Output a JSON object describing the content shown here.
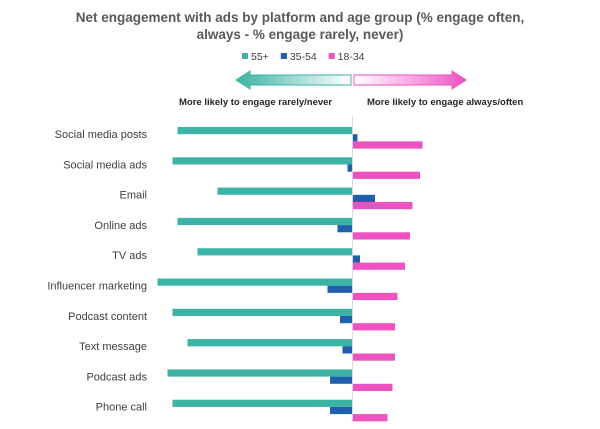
{
  "chart_data": {
    "type": "bar",
    "orientation": "horizontal",
    "title_line1": "Net engagement with ads by platform and age group (% engage often,",
    "title_line2": "always - % engage rarely, never)",
    "left_direction_label": "More likely to engage rarely/never",
    "right_direction_label": "More likely to engage always/often",
    "categories": [
      "Social media posts",
      "Social media ads",
      "Email",
      "Online ads",
      "TV ads",
      "Influencer marketing",
      "Podcast content",
      "Text message",
      "Podcast ads",
      "Phone call"
    ],
    "series": [
      {
        "name": "55+",
        "color": "#3cb3a4",
        "values": [
          -35,
          -36,
          -27,
          -35,
          -31,
          -39,
          -36,
          -33,
          -37,
          -36
        ]
      },
      {
        "name": "35-54",
        "color": "#1f5fad",
        "values": [
          1,
          -1,
          4.5,
          -3,
          1.5,
          -5,
          -2.5,
          -2,
          -4.5,
          -4.5
        ]
      },
      {
        "name": "18-34",
        "color": "#ee52c1",
        "values": [
          14,
          13.5,
          12,
          11.5,
          10.5,
          9,
          8.5,
          8.5,
          8,
          7
        ]
      }
    ],
    "legend_position": "top-center",
    "grid": false
  }
}
